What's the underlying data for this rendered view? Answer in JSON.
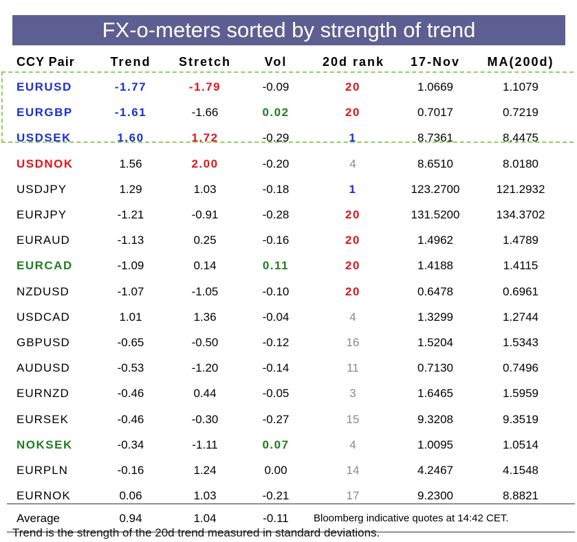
{
  "title": "FX-o-meters sorted by strength of trend",
  "headers": [
    "CCY Pair",
    "Trend",
    "Stretch",
    "Vol",
    "20d rank",
    "17-Nov",
    "MA(200d)"
  ],
  "rows": [
    {
      "pair": "EURUSD",
      "trend": "-1.77",
      "stretch": "-1.79",
      "vol": "-0.09",
      "rank": "20",
      "spot": "1.0669",
      "ma": "1.1079"
    },
    {
      "pair": "EURGBP",
      "trend": "-1.61",
      "stretch": "-1.66",
      "vol": "0.02",
      "rank": "20",
      "spot": "0.7017",
      "ma": "0.7219"
    },
    {
      "pair": "USDSEK",
      "trend": "1.60",
      "stretch": "1.72",
      "vol": "-0.29",
      "rank": "1",
      "spot": "8.7361",
      "ma": "8.4475"
    },
    {
      "pair": "USDNOK",
      "trend": "1.56",
      "stretch": "2.00",
      "vol": "-0.20",
      "rank": "4",
      "spot": "8.6510",
      "ma": "8.0180"
    },
    {
      "pair": "USDJPY",
      "trend": "1.29",
      "stretch": "1.03",
      "vol": "-0.18",
      "rank": "1",
      "spot": "123.2700",
      "ma": "121.2932"
    },
    {
      "pair": "EURJPY",
      "trend": "-1.21",
      "stretch": "-0.91",
      "vol": "-0.28",
      "rank": "20",
      "spot": "131.5200",
      "ma": "134.3702"
    },
    {
      "pair": "EURAUD",
      "trend": "-1.13",
      "stretch": "0.25",
      "vol": "-0.16",
      "rank": "20",
      "spot": "1.4962",
      "ma": "1.4789"
    },
    {
      "pair": "EURCAD",
      "trend": "-1.09",
      "stretch": "0.14",
      "vol": "0.11",
      "rank": "20",
      "spot": "1.4188",
      "ma": "1.4115"
    },
    {
      "pair": "NZDUSD",
      "trend": "-1.07",
      "stretch": "-1.05",
      "vol": "-0.10",
      "rank": "20",
      "spot": "0.6478",
      "ma": "0.6961"
    },
    {
      "pair": "USDCAD",
      "trend": "1.01",
      "stretch": "1.36",
      "vol": "-0.04",
      "rank": "4",
      "spot": "1.3299",
      "ma": "1.2744"
    },
    {
      "pair": "GBPUSD",
      "trend": "-0.65",
      "stretch": "-0.50",
      "vol": "-0.12",
      "rank": "16",
      "spot": "1.5204",
      "ma": "1.5343"
    },
    {
      "pair": "AUDUSD",
      "trend": "-0.53",
      "stretch": "-1.20",
      "vol": "-0.14",
      "rank": "11",
      "spot": "0.7130",
      "ma": "0.7496"
    },
    {
      "pair": "EURNZD",
      "trend": "-0.46",
      "stretch": "0.44",
      "vol": "-0.05",
      "rank": "3",
      "spot": "1.6465",
      "ma": "1.5959"
    },
    {
      "pair": "EURSEK",
      "trend": "-0.46",
      "stretch": "-0.30",
      "vol": "-0.27",
      "rank": "15",
      "spot": "9.3208",
      "ma": "9.3519"
    },
    {
      "pair": "NOKSEK",
      "trend": "-0.34",
      "stretch": "-1.11",
      "vol": "0.07",
      "rank": "4",
      "spot": "1.0095",
      "ma": "1.0514"
    },
    {
      "pair": "EURPLN",
      "trend": "-0.16",
      "stretch": "1.24",
      "vol": "0.00",
      "rank": "14",
      "spot": "4.2467",
      "ma": "4.1548"
    },
    {
      "pair": "EURNOK",
      "trend": "0.06",
      "stretch": "1.03",
      "vol": "-0.21",
      "rank": "17",
      "spot": "9.2300",
      "ma": "8.8821"
    }
  ],
  "footer": {
    "label": "Average",
    "trend": "0.94",
    "stretch": "1.04",
    "vol": "-0.11",
    "note": "Bloomberg indicative quotes at 14:42 CET."
  },
  "cutoff_text": "Trend is the strength of the 20d trend measured in standard deviations.",
  "colors": {
    "banner": "#5d5f92",
    "highlight_blue": "#1a2fd6",
    "highlight_red": "#e0141c",
    "highlight_green": "#207c20",
    "rank_grey": "#888888",
    "dashed_box": "#8fcf5a"
  }
}
